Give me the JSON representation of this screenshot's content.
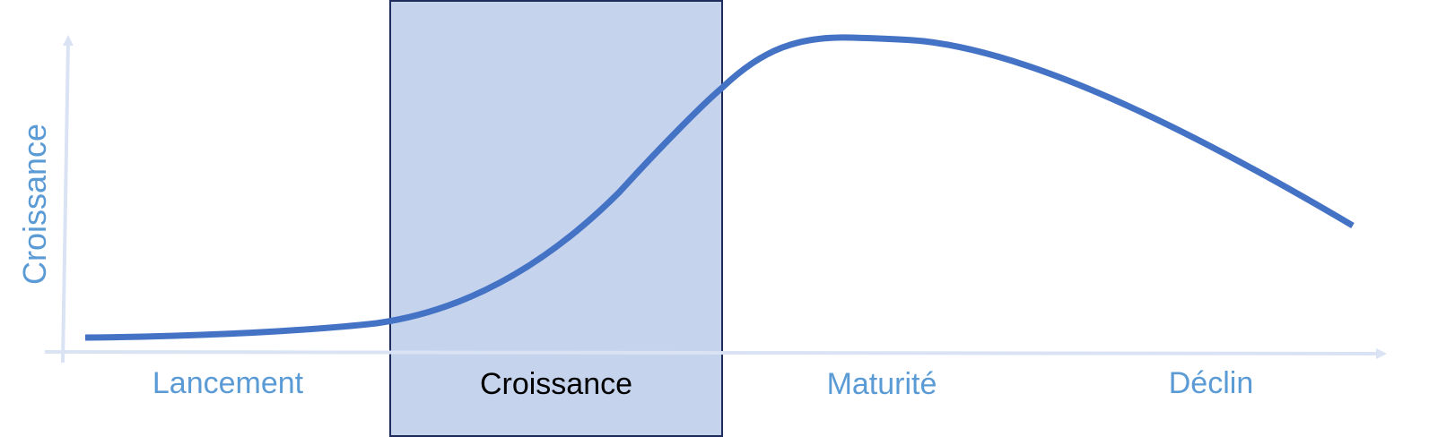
{
  "diagram": {
    "y_axis_label": "Croissance",
    "stages": [
      {
        "label": "Lancement",
        "highlighted": false
      },
      {
        "label": "Croissance",
        "highlighted": true
      },
      {
        "label": "Maturité",
        "highlighted": false
      },
      {
        "label": "Déclin",
        "highlighted": false
      }
    ],
    "colors": {
      "curve": "#4472c4",
      "axis": "#dae3f3",
      "label": "#5b9bd5",
      "highlight_fill": "#c5d3ed",
      "highlight_border": "#1f2d5c",
      "highlight_label": "#000000"
    }
  }
}
